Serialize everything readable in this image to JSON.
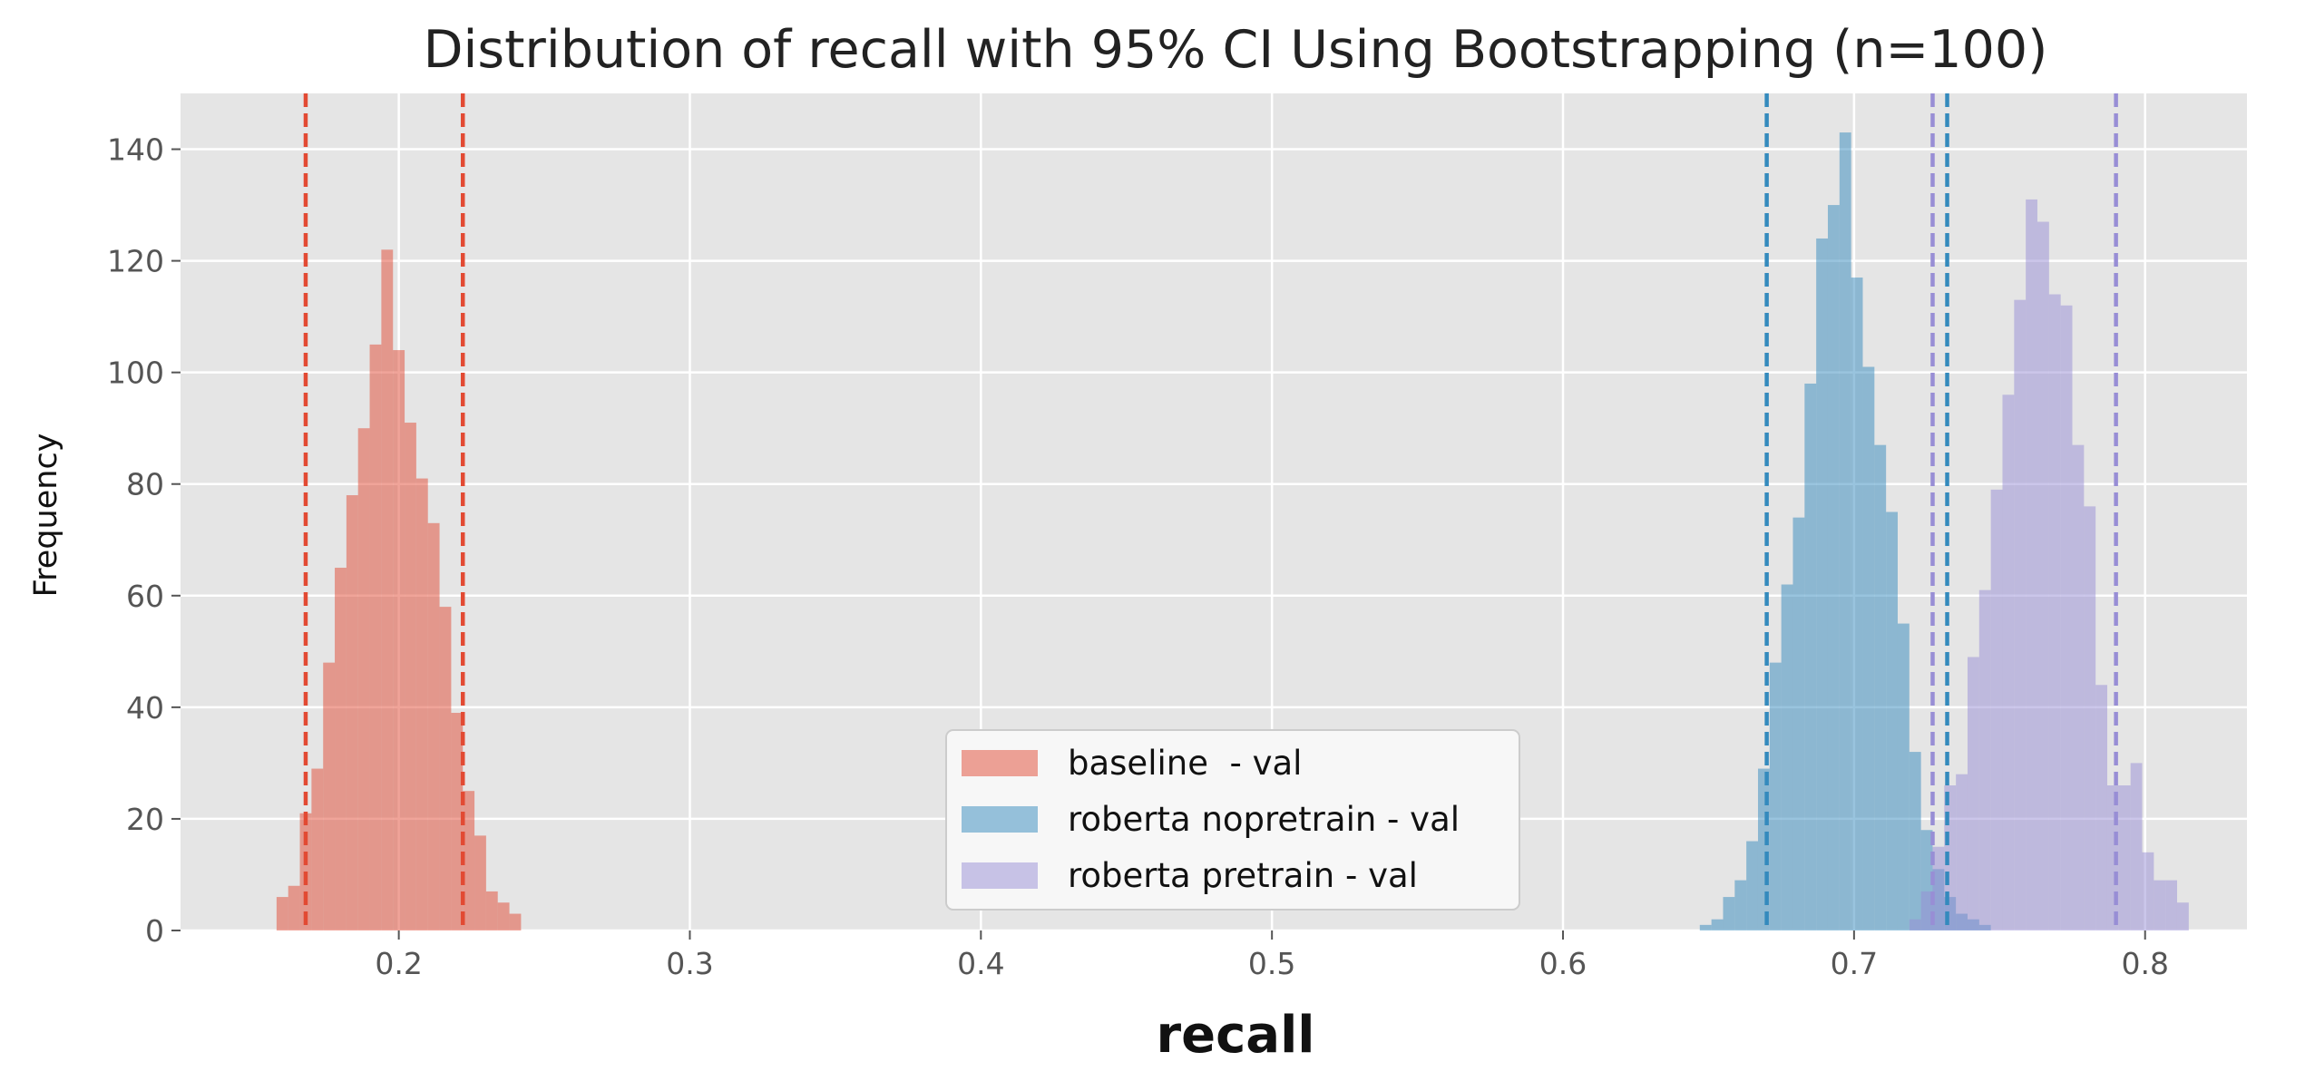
{
  "chart_data": {
    "type": "histogram",
    "title": "Distribution of recall with 95% CI Using Bootstrapping (n=100)",
    "xlabel": "recall",
    "ylabel": "Frequency",
    "xlim": [
      0.125,
      0.835
    ],
    "ylim": [
      0,
      150
    ],
    "xticks": [
      {
        "value": 0.2,
        "label": "0.2"
      },
      {
        "value": 0.3,
        "label": "0.3"
      },
      {
        "value": 0.4,
        "label": "0.4"
      },
      {
        "value": 0.5,
        "label": "0.5"
      },
      {
        "value": 0.6,
        "label": "0.6"
      },
      {
        "value": 0.7,
        "label": "0.7"
      },
      {
        "value": 0.8,
        "label": "0.8"
      }
    ],
    "yticks": [
      {
        "value": 0,
        "label": "0"
      },
      {
        "value": 20,
        "label": "20"
      },
      {
        "value": 40,
        "label": "40"
      },
      {
        "value": 60,
        "label": "60"
      },
      {
        "value": 80,
        "label": "80"
      },
      {
        "value": 100,
        "label": "100"
      },
      {
        "value": 120,
        "label": "120"
      },
      {
        "value": 140,
        "label": "140"
      }
    ],
    "grid": true,
    "legend_position": "bottom-center",
    "series": [
      {
        "name": "baseline  - val",
        "color": "#e24a33",
        "bin_start": 0.158,
        "bin_width": 0.004,
        "counts": [
          6,
          8,
          21,
          29,
          48,
          65,
          78,
          90,
          105,
          122,
          104,
          91,
          81,
          73,
          58,
          39,
          25,
          17,
          7,
          5,
          3
        ],
        "ci": [
          0.168,
          0.222
        ]
      },
      {
        "name": "roberta nopretrain - val",
        "color": "#348abd",
        "bin_start": 0.647,
        "bin_width": 0.004,
        "counts": [
          1,
          2,
          6,
          9,
          16,
          29,
          48,
          62,
          74,
          98,
          124,
          130,
          143,
          117,
          101,
          87,
          75,
          55,
          32,
          18,
          11,
          6,
          3,
          2,
          1
        ],
        "ci": [
          0.67,
          0.732
        ]
      },
      {
        "name": "roberta pretrain - val",
        "color": "#988ed5",
        "bin_start": 0.719,
        "bin_width": 0.004,
        "counts": [
          2,
          7,
          15,
          26,
          28,
          49,
          61,
          79,
          96,
          113,
          131,
          127,
          114,
          112,
          87,
          76,
          44,
          26,
          26,
          30,
          14,
          9,
          9,
          5
        ],
        "ci": [
          0.727,
          0.79
        ]
      }
    ]
  }
}
